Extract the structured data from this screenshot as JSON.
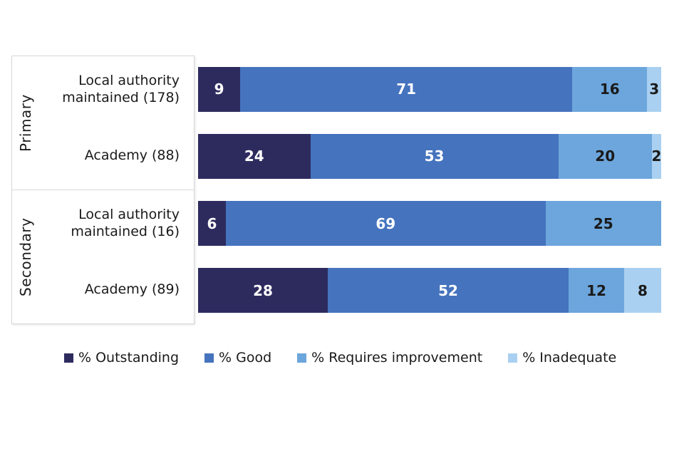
{
  "chart_data": {
    "type": "bar",
    "orientation": "horizontal",
    "stacked": true,
    "unit": "percent",
    "xlim": [
      0,
      100
    ],
    "grid": false,
    "legend_position": "bottom",
    "series": [
      {
        "name": "% Outstanding",
        "color": "#2d2b5e",
        "label_color": "#ffffff"
      },
      {
        "name": "% Good",
        "color": "#4573be",
        "label_color": "#ffffff"
      },
      {
        "name": "% Requires improvement",
        "color": "#6ca6dc",
        "label_color": "#1a1a1a"
      },
      {
        "name": "% Inadequate",
        "color": "#a9d0f0",
        "label_color": "#1a1a1a"
      }
    ],
    "groups": [
      {
        "label": "Primary",
        "rows": [
          {
            "label": "Local authority maintained (178)",
            "values": [
              9,
              71,
              16,
              3
            ]
          },
          {
            "label": "Academy (88)",
            "values": [
              24,
              53,
              20,
              2
            ]
          }
        ]
      },
      {
        "label": "Secondary",
        "rows": [
          {
            "label": "Local authority maintained (16)",
            "values": [
              6,
              69,
              25,
              0
            ]
          },
          {
            "label": "Academy (89)",
            "values": [
              28,
              52,
              12,
              8
            ]
          }
        ]
      }
    ]
  }
}
